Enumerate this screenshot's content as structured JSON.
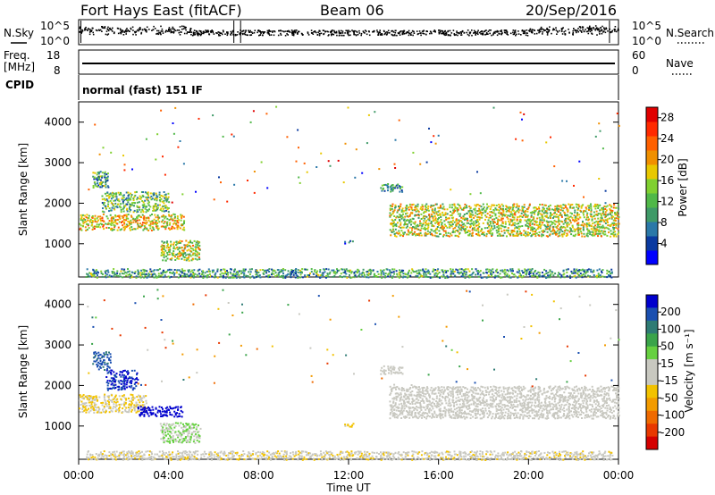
{
  "header": {
    "station": "Fort Hays East (fitACF)",
    "beam": "Beam 06",
    "date": "20/Sep/2016"
  },
  "sky_panel": {
    "left_label": "N.Sky",
    "right_label": "N.Search",
    "ticks_left": [
      "10^5",
      "10^0"
    ],
    "ticks_right": [
      "10^5",
      "10^0"
    ]
  },
  "freq_panel": {
    "left_label_top": "Freq.",
    "left_label_unit": "[MHz]",
    "right_label": "Nave",
    "ticks_left": [
      "18",
      "8"
    ],
    "ticks_right": [
      "60",
      "0"
    ]
  },
  "cpid": {
    "label": "CPID",
    "mode": "normal (fast) 151 IF"
  },
  "x_axis": {
    "label": "Time UT",
    "ticks": [
      "00:00",
      "04:00",
      "08:00",
      "12:00",
      "16:00",
      "20:00",
      "00:00"
    ]
  },
  "range_axis": {
    "label": "Slant Range [km]",
    "ticks": [
      "1000",
      "2000",
      "3000",
      "4000"
    ]
  },
  "power_scale": {
    "label": "Power [dB]",
    "ticks": [
      "4",
      "8",
      "12",
      "16",
      "20",
      "24",
      "28"
    ],
    "colors": [
      "#0000ff",
      "#0a3aa0",
      "#2a78a8",
      "#3f9a68",
      "#50b848",
      "#80d030",
      "#e8c800",
      "#f09000",
      "#ff6000",
      "#ff2a00",
      "#e00000"
    ]
  },
  "velocity_scale": {
    "label": "Velocity [m s⁻¹]",
    "ticks": [
      "200",
      "100",
      "50",
      "15",
      "-15",
      "-50",
      "-100",
      "-200"
    ],
    "colors": [
      "#0000cd",
      "#1a4fb0",
      "#2e7b74",
      "#3aa44a",
      "#66d040",
      "#c8c8c0",
      "#c8c8c0",
      "#f2c200",
      "#f39b00",
      "#ef6a00",
      "#e83800",
      "#d40000"
    ]
  },
  "chart_data": [
    {
      "type": "scatter",
      "title": "N.Sky / N.Search",
      "xlabel": "Time UT",
      "ylabel": "N.Sky",
      "xlim": [
        "00:00",
        "24:00"
      ],
      "ylim": [
        1,
        100000
      ],
      "y_scale": "log",
      "note_series": [
        {
          "name": "N.Sky",
          "approx_level": "10^0 to 10^5, noisy, elevated 00:00-05:00 and 20:00-24:00"
        },
        {
          "name": "N.Search",
          "approx_level": "similar noisy band"
        }
      ]
    },
    {
      "type": "line",
      "title": "Freq. / Nave",
      "xlabel": "Time UT",
      "ylabel": "Freq. [MHz]",
      "xlim": [
        "00:00",
        "24:00"
      ],
      "ylim": [
        8,
        18
      ],
      "series": [
        {
          "name": "Freq.",
          "values_constant_approx": 11
        },
        {
          "name": "Nave",
          "values_constant_approx": 15
        }
      ]
    },
    {
      "type": "heatmap",
      "title": "Power",
      "xlabel": "Time UT",
      "ylabel": "Slant Range [km]",
      "xlim_hours": [
        0,
        24
      ],
      "ylim_km": [
        180,
        4500
      ],
      "colorbar": {
        "label": "Power [dB]",
        "range": [
          0,
          30
        ]
      },
      "regions": [
        {
          "t": [
            0.0,
            4.7
          ],
          "r": [
            1350,
            1750
          ],
          "value_db": 18
        },
        {
          "t": [
            1.0,
            4.0
          ],
          "r": [
            1800,
            2300
          ],
          "value_db": 12
        },
        {
          "t": [
            0.6,
            1.3
          ],
          "r": [
            2400,
            2800
          ],
          "value_db": 10
        },
        {
          "t": [
            3.6,
            5.4
          ],
          "r": [
            600,
            1100
          ],
          "value_db": 16
        },
        {
          "t": [
            13.4,
            14.4
          ],
          "r": [
            2300,
            2500
          ],
          "value_db": 10
        },
        {
          "t": [
            13.8,
            24.0
          ],
          "r": [
            1200,
            2000
          ],
          "value_db": 16
        },
        {
          "t": [
            0.3,
            23.7
          ],
          "r": [
            180,
            400
          ],
          "value_db": 10
        },
        {
          "t": [
            11.8,
            12.2
          ],
          "r": [
            1000,
            1100
          ],
          "value_db": 6
        }
      ]
    },
    {
      "type": "heatmap",
      "title": "Velocity",
      "xlabel": "Time UT",
      "ylabel": "Slant Range [km]",
      "xlim_hours": [
        0,
        24
      ],
      "ylim_km": [
        180,
        4500
      ],
      "colorbar": {
        "label": "Velocity [m s⁻¹]",
        "range": [
          -250,
          250
        ]
      },
      "regions": [
        {
          "t": [
            0.0,
            3.0
          ],
          "r": [
            1350,
            1800
          ],
          "value_ms": -40
        },
        {
          "t": [
            2.6,
            4.6
          ],
          "r": [
            1250,
            1500
          ],
          "value_ms": 240
        },
        {
          "t": [
            1.2,
            2.6
          ],
          "r": [
            1900,
            2400
          ],
          "value_ms": 210
        },
        {
          "t": [
            0.6,
            1.4
          ],
          "r": [
            2400,
            2850
          ],
          "value_ms": 180
        },
        {
          "t": [
            3.6,
            5.4
          ],
          "r": [
            600,
            1100
          ],
          "value_ms": 40
        },
        {
          "t": [
            13.4,
            14.4
          ],
          "r": [
            2300,
            2500
          ],
          "value_ms": 0
        },
        {
          "t": [
            13.8,
            24.0
          ],
          "r": [
            1200,
            2000
          ],
          "value_ms": 0
        },
        {
          "t": [
            0.3,
            23.7
          ],
          "r": [
            180,
            400
          ],
          "value_ms": -30
        },
        {
          "t": [
            11.8,
            12.2
          ],
          "r": [
            1000,
            1100
          ],
          "value_ms": -50
        }
      ]
    }
  ]
}
